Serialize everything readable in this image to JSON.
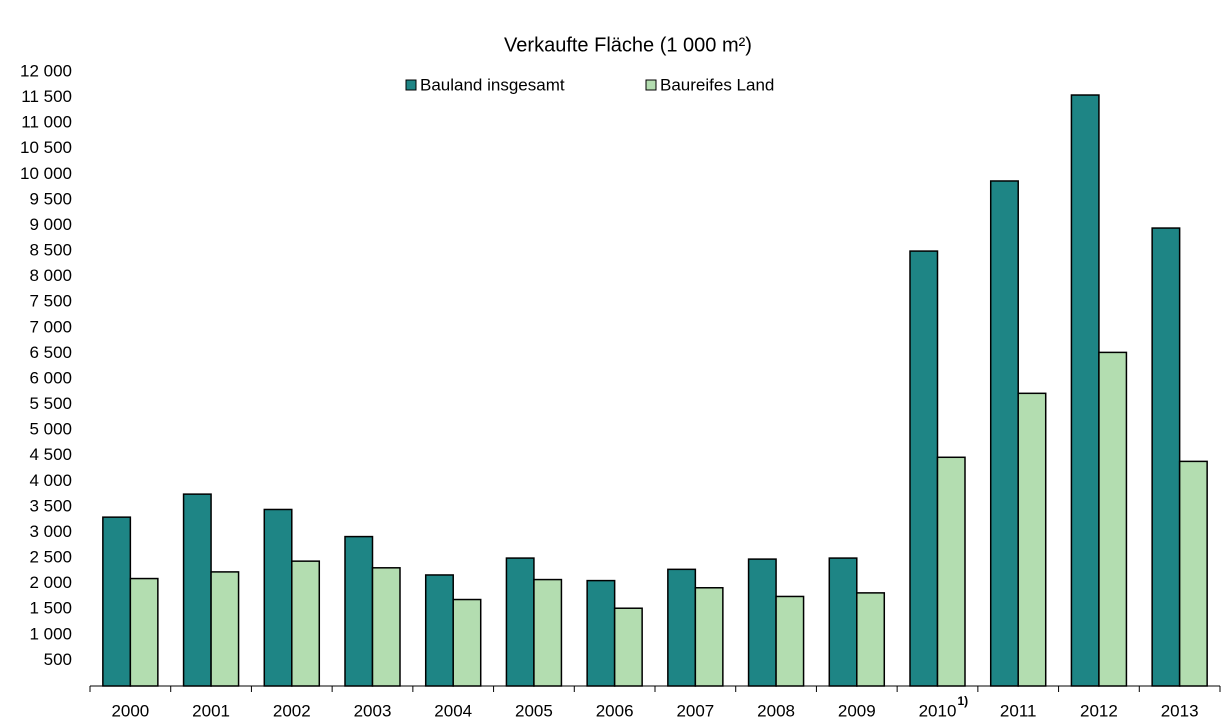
{
  "chart_data": {
    "type": "bar",
    "title": "Verkaufte Fläche (1 000 m²)",
    "categories": [
      "2000",
      "2001",
      "2002",
      "2003",
      "2004",
      "2005",
      "2006",
      "2007",
      "2008",
      "2009",
      "2010",
      "2011",
      "2012",
      "2013"
    ],
    "category_superscripts": [
      null,
      null,
      null,
      null,
      null,
      null,
      null,
      null,
      null,
      null,
      "1)",
      null,
      null,
      null
    ],
    "series": [
      {
        "name": "Bauland insgesamt",
        "color": "#1e8585",
        "values": [
          3300,
          3750,
          3450,
          2920,
          2170,
          2500,
          2060,
          2280,
          2480,
          2500,
          8500,
          9870,
          11550,
          8950
        ]
      },
      {
        "name": "Baureifes Land",
        "color": "#b3ddb0",
        "values": [
          2100,
          2230,
          2440,
          2310,
          1690,
          2080,
          1520,
          1920,
          1750,
          1820,
          4470,
          5720,
          6520,
          4390
        ]
      }
    ],
    "ylim": [
      0,
      12000
    ],
    "yticks": [
      500,
      {
        "value": 1000,
        "label": "1 000"
      },
      {
        "value": 1500,
        "label": "1 500"
      },
      {
        "value": 2000,
        "label": "2 000"
      },
      {
        "value": 2500,
        "label": "2 500"
      },
      {
        "value": 3000,
        "label": "3 000"
      },
      {
        "value": 3500,
        "label": "3 500"
      },
      {
        "value": 4000,
        "label": "4 000"
      },
      {
        "value": 4500,
        "label": "4 500"
      },
      {
        "value": 5000,
        "label": "5 000"
      },
      {
        "value": 5500,
        "label": "5 500"
      },
      {
        "value": 6000,
        "label": "6 000"
      },
      {
        "value": 6500,
        "label": "6 500"
      },
      {
        "value": 7000,
        "label": "7 000"
      },
      {
        "value": 7500,
        "label": "7 500"
      },
      {
        "value": 8000,
        "label": "8 000"
      },
      {
        "value": 8500,
        "label": "8 500"
      },
      {
        "value": 9000,
        "label": "9 000"
      },
      {
        "value": 9500,
        "label": "9 500"
      },
      {
        "value": 10000,
        "label": "10 000"
      },
      {
        "value": 10500,
        "label": "10 500"
      },
      {
        "value": 11000,
        "label": "11 000"
      },
      {
        "value": 11500,
        "label": "11 500"
      },
      {
        "value": 12000,
        "label": "12 000"
      }
    ],
    "grid": false,
    "legend": "top"
  }
}
